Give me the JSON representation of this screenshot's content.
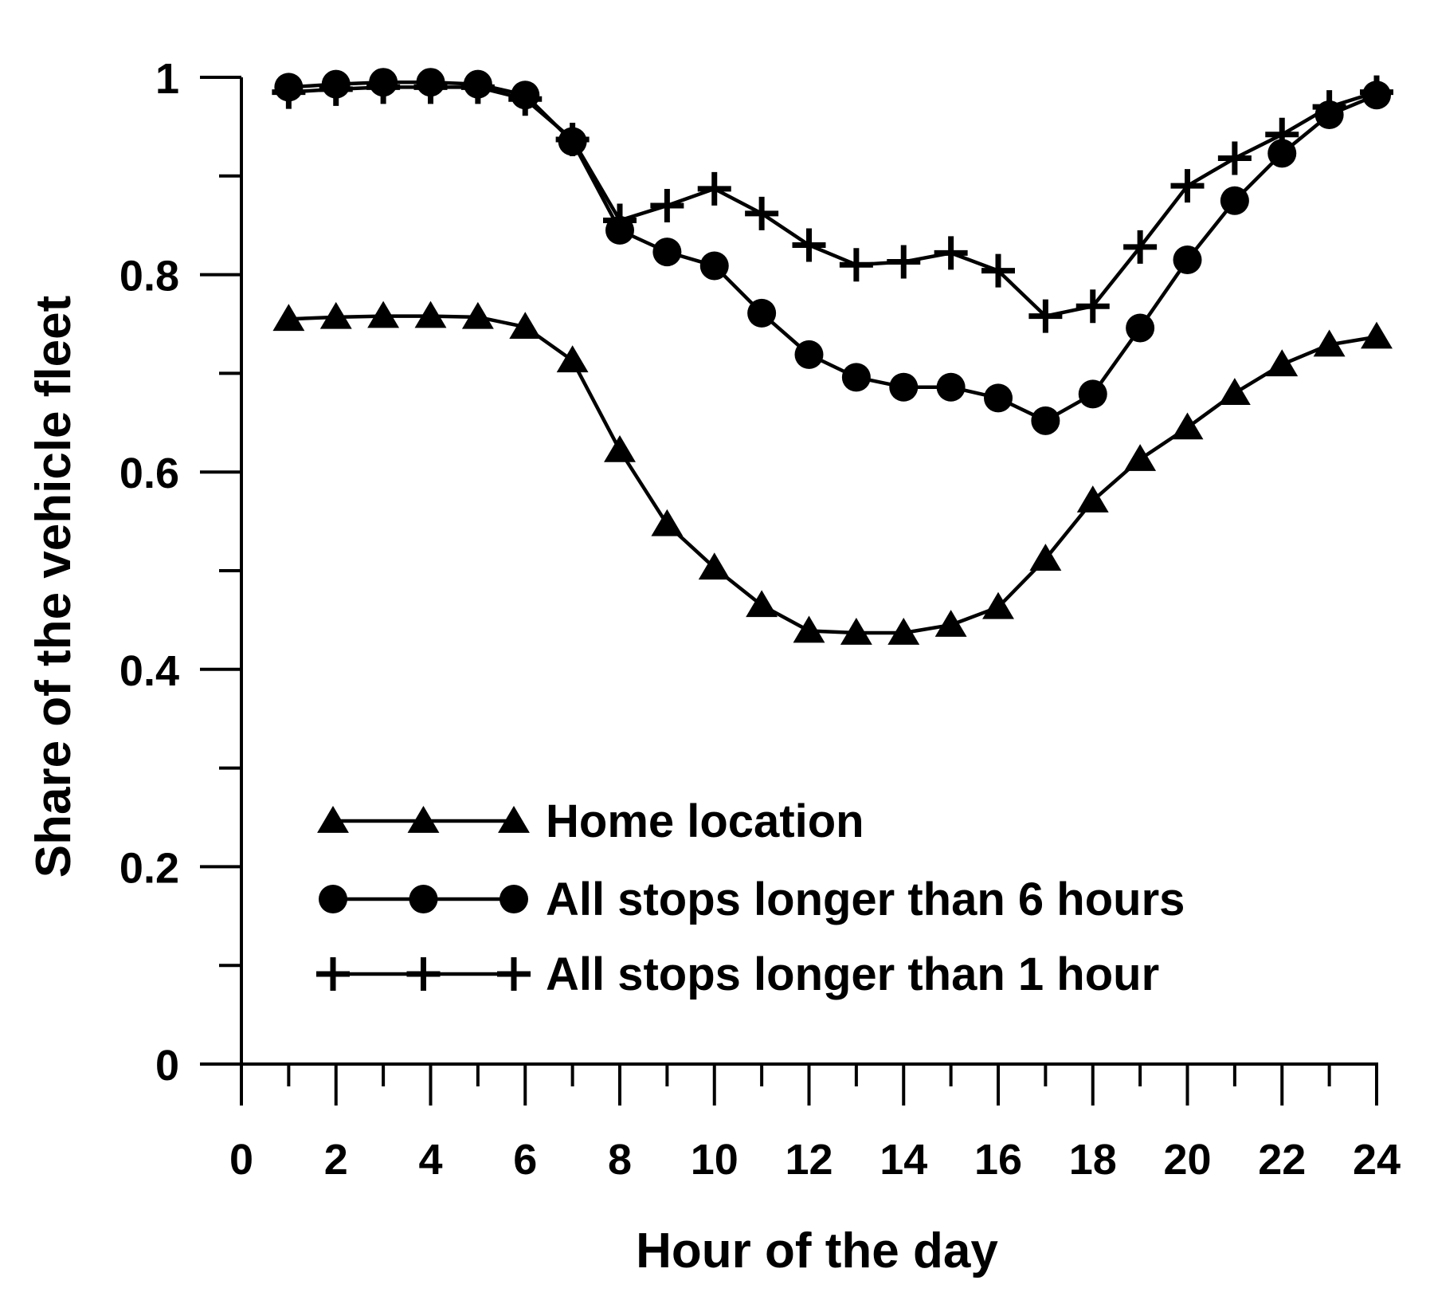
{
  "chart_data": {
    "type": "line",
    "xlabel": "Hour of the day",
    "ylabel": "Share of the vehicle fleet",
    "xlim": [
      0,
      24
    ],
    "ylim": [
      0,
      1
    ],
    "x_ticks": [
      "0",
      "2",
      "4",
      "6",
      "8",
      "10",
      "12",
      "14",
      "16",
      "18",
      "20",
      "22",
      "24"
    ],
    "y_ticks": [
      "0",
      "0.2",
      "0.4",
      "0.6",
      "0.8",
      "1"
    ],
    "grid": false,
    "legend_position": "bottom-left",
    "x": [
      1,
      2,
      3,
      4,
      5,
      6,
      7,
      8,
      9,
      10,
      11,
      12,
      13,
      14,
      15,
      16,
      17,
      18,
      19,
      20,
      21,
      22,
      23,
      24
    ],
    "series": [
      {
        "name": "Home location",
        "marker": "triangle",
        "values": [
          0.755,
          0.757,
          0.758,
          0.758,
          0.757,
          0.747,
          0.713,
          0.622,
          0.547,
          0.503,
          0.465,
          0.439,
          0.437,
          0.437,
          0.445,
          0.463,
          0.512,
          0.571,
          0.613,
          0.645,
          0.68,
          0.709,
          0.729,
          0.737
        ]
      },
      {
        "name": "All stops longer than 6 hours",
        "marker": "circle",
        "values": [
          0.99,
          0.993,
          0.995,
          0.995,
          0.993,
          0.982,
          0.935,
          0.845,
          0.823,
          0.809,
          0.761,
          0.719,
          0.696,
          0.686,
          0.686,
          0.675,
          0.652,
          0.679,
          0.746,
          0.815,
          0.875,
          0.923,
          0.962,
          0.982
        ]
      },
      {
        "name": "All stops longer than 1 hour",
        "marker": "plus",
        "values": [
          0.985,
          0.988,
          0.99,
          0.99,
          0.99,
          0.978,
          0.937,
          0.855,
          0.87,
          0.887,
          0.862,
          0.83,
          0.81,
          0.813,
          0.822,
          0.804,
          0.758,
          0.768,
          0.828,
          0.89,
          0.918,
          0.942,
          0.97,
          0.985
        ]
      }
    ]
  }
}
